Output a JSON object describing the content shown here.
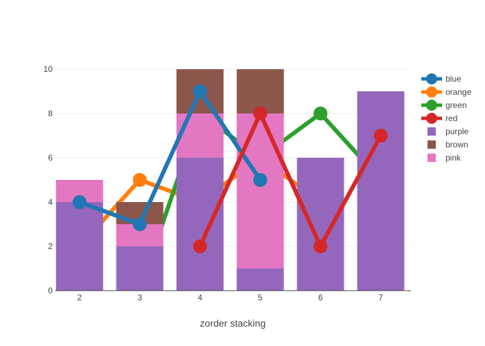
{
  "chart_data": {
    "type": "bar",
    "subtype": "stacked bars with overlaid lines",
    "xlabel": "zorder stacking",
    "ylabel": "",
    "x_ticks": [
      2,
      3,
      4,
      5,
      6,
      7
    ],
    "y_ticks": [
      0,
      2,
      4,
      6,
      8,
      10
    ],
    "xlim": [
      1.6,
      7.5
    ],
    "ylim": [
      0,
      10
    ],
    "grid": true,
    "legend_position": "right",
    "bars": [
      {
        "name": "purple",
        "color": "#9467bd",
        "x": [
          2,
          3,
          4,
          5,
          6,
          7
        ],
        "values": [
          4,
          2,
          6,
          1,
          6,
          9
        ]
      },
      {
        "name": "brown",
        "color": "#8c564b",
        "x": [
          2,
          3,
          4,
          5,
          6,
          7
        ],
        "values": [
          0,
          1,
          2,
          2,
          0,
          0
        ]
      },
      {
        "name": "pink",
        "color": "#e377c2",
        "x": [
          2,
          3,
          4,
          5,
          6,
          7
        ],
        "values": [
          1,
          1,
          2,
          7,
          0,
          0
        ]
      }
    ],
    "bar_stack_order": [
      "purple",
      "pink",
      "brown"
    ],
    "lines": [
      {
        "name": "blue",
        "color": "#1f77b4",
        "x": [
          2,
          3,
          4,
          5
        ],
        "values": [
          4,
          3,
          9,
          5
        ]
      },
      {
        "name": "orange",
        "color": "#ff7f0e",
        "x": [
          2,
          3,
          4,
          5,
          6
        ],
        "values": [
          2,
          5,
          4,
          6,
          4
        ]
      },
      {
        "name": "green",
        "color": "#2ca02c",
        "x": [
          3,
          4,
          5,
          6,
          7
        ],
        "values": [
          0,
          8,
          6,
          8,
          5
        ]
      },
      {
        "name": "red",
        "color": "#d62728",
        "x": [
          4,
          5,
          6,
          7
        ],
        "values": [
          2,
          8,
          2,
          7
        ]
      }
    ],
    "draw_order": [
      {
        "kind": "line",
        "name": "orange"
      },
      {
        "kind": "line",
        "name": "green"
      },
      {
        "kind": "bar",
        "name": "purple"
      },
      {
        "kind": "bar",
        "name": "pink"
      },
      {
        "kind": "bar",
        "name": "brown"
      },
      {
        "kind": "line",
        "name": "blue"
      },
      {
        "kind": "line",
        "name": "red"
      }
    ],
    "legend": [
      "blue",
      "orange",
      "green",
      "red",
      "purple",
      "brown",
      "pink"
    ]
  }
}
